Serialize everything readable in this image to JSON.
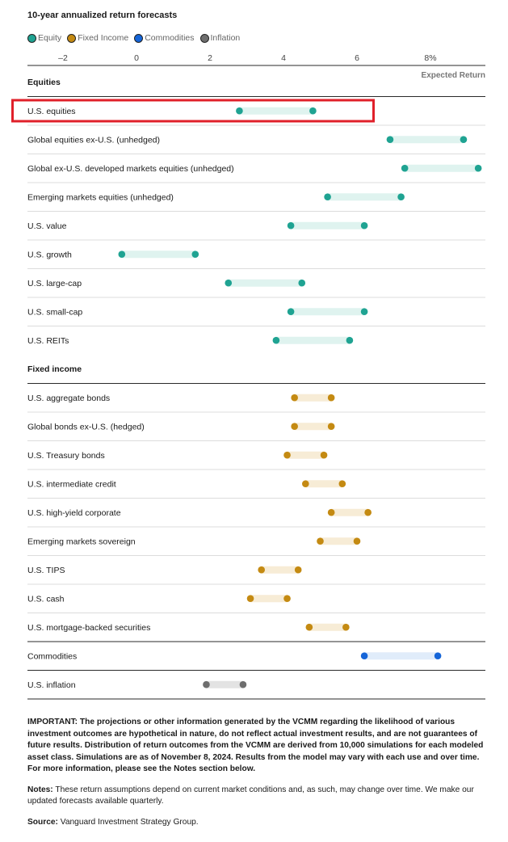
{
  "chart_data": {
    "type": "range-dot",
    "title": "10-year annualized return forecasts",
    "xlabel": "Expected Return",
    "xlim": [
      -2.8,
      9.4
    ],
    "ticks": [
      {
        "value": -2,
        "label": "–2"
      },
      {
        "value": 0,
        "label": "0"
      },
      {
        "value": 2,
        "label": "2"
      },
      {
        "value": 4,
        "label": "4"
      },
      {
        "value": 6,
        "label": "6"
      },
      {
        "value": 8,
        "label": "8%"
      }
    ],
    "legend": [
      {
        "name": "Equity",
        "color": "#1fa392"
      },
      {
        "name": "Fixed Income",
        "color": "#c48a12"
      },
      {
        "name": "Commodities",
        "color": "#1565d8"
      },
      {
        "name": "Inflation",
        "color": "#6e6e6e"
      }
    ],
    "highlight": "U.S. equities",
    "groups": [
      {
        "name": "Equities",
        "type": "equity",
        "items": [
          {
            "label": "U.S. equities",
            "low": 2.8,
            "high": 4.8
          },
          {
            "label": "Global equities ex-U.S. (unhedged)",
            "low": 6.9,
            "high": 8.9
          },
          {
            "label": "Global ex-U.S. developed markets equities (unhedged)",
            "low": 7.3,
            "high": 9.3
          },
          {
            "label": "Emerging markets equities (unhedged)",
            "low": 5.2,
            "high": 7.2
          },
          {
            "label": "U.S. value",
            "low": 4.2,
            "high": 6.2
          },
          {
            "label": "U.S. growth",
            "low": -0.4,
            "high": 1.6
          },
          {
            "label": "U.S. large-cap",
            "low": 2.5,
            "high": 4.5
          },
          {
            "label": "U.S. small-cap",
            "low": 4.2,
            "high": 6.2
          },
          {
            "label": "U.S. REITs",
            "low": 3.8,
            "high": 5.8
          }
        ]
      },
      {
        "name": "Fixed income",
        "type": "fixed",
        "items": [
          {
            "label": "U.S. aggregate bonds",
            "low": 4.3,
            "high": 5.3
          },
          {
            "label": "Global bonds ex-U.S. (hedged)",
            "low": 4.3,
            "high": 5.3
          },
          {
            "label": "U.S. Treasury bonds",
            "low": 4.1,
            "high": 5.1
          },
          {
            "label": "U.S. intermediate credit",
            "low": 4.6,
            "high": 5.6
          },
          {
            "label": "U.S. high-yield corporate",
            "low": 5.3,
            "high": 6.3
          },
          {
            "label": "Emerging markets sovereign",
            "low": 5.0,
            "high": 6.0
          },
          {
            "label": "U.S. TIPS",
            "low": 3.4,
            "high": 4.4
          },
          {
            "label": "U.S. cash",
            "low": 3.1,
            "high": 4.1
          },
          {
            "label": "U.S. mortgage-backed securities",
            "low": 4.7,
            "high": 5.7
          }
        ]
      },
      {
        "name": "",
        "type": "commodities",
        "items": [
          {
            "label": "Commodities",
            "low": 6.2,
            "high": 8.2
          }
        ]
      },
      {
        "name": "",
        "type": "inflation",
        "items": [
          {
            "label": "U.S. inflation",
            "low": 1.9,
            "high": 2.9
          }
        ]
      }
    ]
  },
  "colors": {
    "equity_dot": "#1fa392",
    "equity_bar": "#dff3ef",
    "fixed_dot": "#c48a12",
    "fixed_bar": "#f7ecd6",
    "commodities_dot": "#1565d8",
    "commodities_bar": "#e0ecfa",
    "inflation_dot": "#6e6e6e",
    "inflation_bar": "#e3e3e3",
    "highlight_box": "#e0202a"
  },
  "notes": {
    "important_label": "IMPORTANT:",
    "important_text": "The projections or other information generated by the VCMM regarding the likelihood of various investment outcomes are hypothetical in nature, do not reflect actual investment results, and are not guarantees of future results. Distribution of return outcomes from the VCMM are derived from 10,000 simulations for each modeled asset class. Simulations are as of November 8, 2024. Results from the model may vary with each use and over time. For more information, please see the Notes section below.",
    "notes_label": "Notes:",
    "notes_text": "These return assumptions depend on current market conditions and, as such, may change over time. We make our updated forecasts available quarterly.",
    "source_label": "Source:",
    "source_text": "Vanguard Investment Strategy Group."
  }
}
